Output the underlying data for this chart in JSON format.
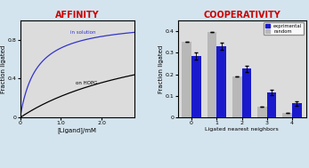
{
  "title_left": "AFFINITY",
  "title_right": "COOPERATIVITY",
  "title_color": "#cc0000",
  "title_fontsize": 7.0,
  "affinity": {
    "x_max": 2.8,
    "xlabel": "[Ligand]/mM",
    "ylabel": "Fraction ligated",
    "xticks": [
      0,
      1.0,
      2.0
    ],
    "yticks": [
      0,
      0.4,
      0.8
    ],
    "ylim": [
      0,
      1.0
    ],
    "solution_Ka": 2.5,
    "hopg_Ka": 0.28,
    "label_solution": "in solution",
    "label_hopg": "on HOPG",
    "color_solution": "#3333cc",
    "color_hopg": "#000000",
    "bg_color": "#dcdcdc"
  },
  "cooperativity": {
    "categories": [
      0,
      1,
      2,
      3,
      4
    ],
    "experimental": [
      0.285,
      0.33,
      0.225,
      0.115,
      0.065
    ],
    "experimental_err": [
      0.015,
      0.018,
      0.015,
      0.012,
      0.01
    ],
    "random": [
      0.35,
      0.395,
      0.19,
      0.05,
      0.02
    ],
    "random_err": [
      0.0,
      0.0,
      0.0,
      0.0,
      0.0
    ],
    "xlabel": "Ligated nearest neighbors",
    "ylabel": "Fraction ligated",
    "ylim": [
      0,
      0.45
    ],
    "yticks": [
      0,
      0.1,
      0.2,
      0.3,
      0.4
    ],
    "color_experimental": "#1a1acc",
    "color_random": "#b8b8b8",
    "label_experimental": "exprimental",
    "label_random": "random",
    "bg_color": "#dcdcdc"
  },
  "fig_bg_color": "#d4e4ee"
}
